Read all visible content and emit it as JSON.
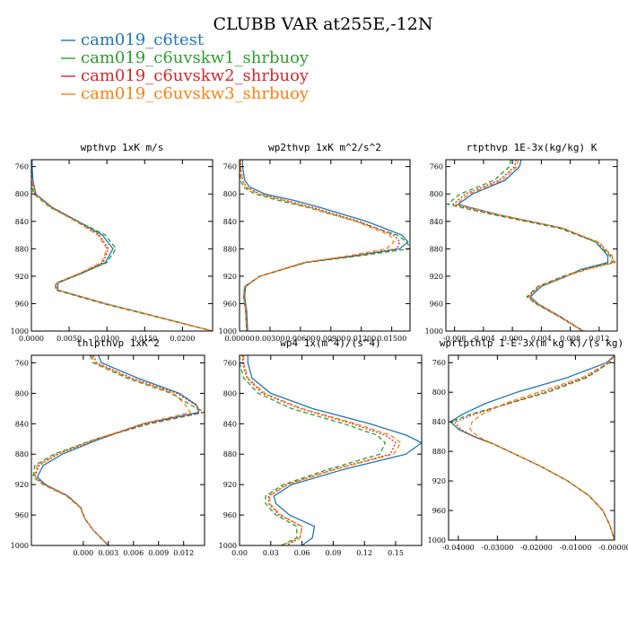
{
  "figure": {
    "title": "CLUBB VAR at255E,-12N"
  },
  "colors": {
    "cam019_c6test": "#1f77b4",
    "cam019_c6uvskw1_shrbuoy": "#2ca02c",
    "cam019_c6uvskw2_shrbuoy": "#d62728",
    "cam019_c6uvskw3_shrbuoy": "#ff7f0e"
  },
  "legend": [
    {
      "name": "cam019_c6test",
      "color": "#1f77b4",
      "dash": "solid"
    },
    {
      "name": "cam019_c6uvskw1_shrbuoy",
      "color": "#2ca02c",
      "dash": "dashed"
    },
    {
      "name": "cam019_c6uvskw2_shrbuoy",
      "color": "#d62728",
      "dash": "dotted"
    },
    {
      "name": "cam019_c6uvskw3_shrbuoy",
      "color": "#ff7f0e",
      "dash": "dashed"
    }
  ],
  "chart_data": [
    {
      "type": "line",
      "title": "wpthvp  1xK m/s",
      "xlim": [
        0,
        0.024
      ],
      "ylim": [
        1000,
        750
      ],
      "xticks": [
        "0.0000",
        "0.0050",
        "0.0100",
        "0.0150",
        "0.0200"
      ],
      "xtick_values": [
        0,
        0.005,
        0.01,
        0.015,
        0.02
      ],
      "yticks": [
        "760",
        "800",
        "840",
        "880",
        "920",
        "960",
        "1000"
      ],
      "ytick_values": [
        760,
        800,
        840,
        880,
        920,
        960,
        1000
      ],
      "y": [
        750,
        760,
        780,
        800,
        820,
        840,
        860,
        880,
        900,
        915,
        930,
        940,
        960,
        980,
        1000
      ],
      "series": [
        {
          "name": "cam019_c6test",
          "values": [
            0.0001,
            0.0001,
            0.0002,
            0.0006,
            0.0028,
            0.0062,
            0.0094,
            0.0108,
            0.0098,
            0.0068,
            0.0035,
            0.0035,
            0.0098,
            0.017,
            0.024
          ]
        },
        {
          "name": "cam019_c6uvskw1_shrbuoy",
          "values": [
            -0.0005,
            -0.0004,
            -0.0001,
            0.0003,
            0.0025,
            0.0062,
            0.0098,
            0.0112,
            0.01,
            0.0068,
            0.0032,
            0.0032,
            0.0095,
            0.0168,
            0.024
          ]
        },
        {
          "name": "cam019_c6uvskw2_shrbuoy",
          "values": [
            -0.0002,
            -0.0002,
            0,
            0.0005,
            0.0027,
            0.006,
            0.009,
            0.0102,
            0.0095,
            0.0066,
            0.0033,
            0.0033,
            0.0096,
            0.0169,
            0.024
          ]
        },
        {
          "name": "cam019_c6uvskw3_shrbuoy",
          "values": [
            -0.0001,
            -0.0001,
            0.0001,
            0.0005,
            0.0026,
            0.0059,
            0.0088,
            0.01,
            0.0093,
            0.0065,
            0.0034,
            0.0034,
            0.0097,
            0.0169,
            0.024
          ]
        }
      ]
    },
    {
      "type": "line",
      "title": "wp2thvp  1xK m^2/s^2",
      "xlim": [
        0,
        0.0168
      ],
      "ylim": [
        1000,
        750
      ],
      "xticks": [
        "0.00000",
        "0.00300",
        "0.00600",
        "0.00900",
        "0.01200",
        "0.01500"
      ],
      "xtick_values": [
        0,
        0.003,
        0.006,
        0.009,
        0.012,
        0.015
      ],
      "yticks": [
        "760",
        "800",
        "840",
        "880",
        "920",
        "960",
        "1000"
      ],
      "ytick_values": [
        760,
        800,
        840,
        880,
        920,
        960,
        1000
      ],
      "y": [
        750,
        760,
        780,
        790,
        800,
        810,
        820,
        840,
        860,
        870,
        880,
        890,
        900,
        920,
        935,
        950,
        970,
        1000
      ],
      "series": [
        {
          "name": "cam019_c6test",
          "values": [
            0.0003,
            0.0003,
            0.0005,
            0.001,
            0.0025,
            0.0055,
            0.008,
            0.0125,
            0.016,
            0.0166,
            0.0158,
            0.0115,
            0.0065,
            0.002,
            0.0006,
            0.0005,
            0.0007,
            0.0008
          ]
        },
        {
          "name": "cam019_c6uvskw1_shrbuoy",
          "values": [
            0,
            0,
            0.0001,
            0.0004,
            0.0015,
            0.004,
            0.0068,
            0.0115,
            0.0155,
            0.0165,
            0.0168,
            0.012,
            0.0066,
            0.002,
            0.0005,
            0.0004,
            0.0006,
            0.0007
          ]
        },
        {
          "name": "cam019_c6uvskw2_shrbuoy",
          "values": [
            0.0001,
            0.0001,
            0.0003,
            0.0007,
            0.002,
            0.0047,
            0.0073,
            0.0118,
            0.0152,
            0.0158,
            0.0155,
            0.0112,
            0.0064,
            0.002,
            0.0005,
            0.0004,
            0.0006,
            0.0007
          ]
        },
        {
          "name": "cam019_c6uvskw3_shrbuoy",
          "values": [
            0.0001,
            0.0001,
            0.0003,
            0.0006,
            0.0019,
            0.0045,
            0.007,
            0.0115,
            0.0148,
            0.0152,
            0.0145,
            0.0108,
            0.0063,
            0.002,
            0.0005,
            0.0004,
            0.0006,
            0.0007
          ]
        }
      ]
    },
    {
      "type": "line",
      "title": "rtpthvp  1E-3x(kg/kg) K",
      "xlim": [
        -0.0092,
        0.0145
      ],
      "ylim": [
        1000,
        750
      ],
      "xticks": [
        "-0.008",
        "-0.004",
        "0.000",
        "0.004",
        "0.008",
        "0.012"
      ],
      "xtick_values": [
        -0.008,
        -0.004,
        0,
        0.004,
        0.008,
        0.012
      ],
      "yticks": [
        "760",
        "800",
        "840",
        "880",
        "920",
        "960",
        "1000"
      ],
      "ytick_values": [
        760,
        800,
        840,
        880,
        920,
        960,
        1000
      ],
      "y": [
        750,
        760,
        780,
        800,
        815,
        830,
        850,
        870,
        890,
        900,
        910,
        920,
        935,
        950,
        960,
        980,
        1000
      ],
      "series": [
        {
          "name": "cam019_c6test",
          "values": [
            0.0012,
            0.001,
            -0.001,
            -0.0055,
            -0.0075,
            -0.002,
            0.007,
            0.0115,
            0.0132,
            0.0132,
            0.0095,
            0.0075,
            0.004,
            0.0025,
            0.0035,
            0.0068,
            0.0098
          ]
        },
        {
          "name": "cam019_c6uvskw1_shrbuoy",
          "values": [
            -0.0002,
            -0.0004,
            -0.0025,
            -0.0072,
            -0.009,
            -0.0028,
            0.0065,
            0.0115,
            0.0135,
            0.0138,
            0.01,
            0.007,
            0.0035,
            0.002,
            0.0032,
            0.0066,
            0.0097
          ]
        },
        {
          "name": "cam019_c6uvskw2_shrbuoy",
          "values": [
            0.0005,
            0.0003,
            -0.0018,
            -0.0065,
            -0.0082,
            -0.0024,
            0.0068,
            0.0118,
            0.0137,
            0.014,
            0.0102,
            0.0072,
            0.0037,
            0.0022,
            0.0033,
            0.0067,
            0.0098
          ]
        },
        {
          "name": "cam019_c6uvskw3_shrbuoy",
          "values": [
            0.0008,
            0.0006,
            -0.0014,
            -0.006,
            -0.0078,
            -0.0022,
            0.0069,
            0.0119,
            0.0138,
            0.0142,
            0.0104,
            0.0073,
            0.0038,
            0.0023,
            0.0034,
            0.0067,
            0.0098
          ]
        }
      ]
    },
    {
      "type": "line",
      "title": "thlpthvp  1xK^2",
      "xlim": [
        -0.0062,
        0.0145
      ],
      "ylim": [
        1000,
        750
      ],
      "xticks": [
        "0.000",
        "0.003",
        "0.006",
        "0.009",
        "0.012"
      ],
      "xtick_values": [
        0,
        0.003,
        0.006,
        0.009,
        0.012
      ],
      "yticks": [
        "760",
        "800",
        "840",
        "880",
        "920",
        "960",
        "1000"
      ],
      "ytick_values": [
        760,
        800,
        840,
        880,
        920,
        960,
        1000
      ],
      "y": [
        750,
        760,
        780,
        800,
        815,
        825,
        840,
        860,
        880,
        895,
        910,
        920,
        935,
        950,
        965,
        980,
        1000
      ],
      "series": [
        {
          "name": "cam019_c6test",
          "values": [
            0.0018,
            0.0022,
            0.0065,
            0.0115,
            0.0135,
            0.0138,
            0.0072,
            0.002,
            -0.0025,
            -0.0048,
            -0.0055,
            -0.0045,
            -0.0018,
            -0.0003,
            0.0002,
            0.0012,
            0.003
          ]
        },
        {
          "name": "cam019_c6uvskw1_shrbuoy",
          "values": [
            0.0008,
            0.0012,
            0.0052,
            0.0105,
            0.0128,
            0.0145,
            0.008,
            0.0015,
            -0.0035,
            -0.0058,
            -0.006,
            -0.0048,
            -0.002,
            -0.0004,
            0.0002,
            0.0012,
            0.003
          ]
        },
        {
          "name": "cam019_c6uvskw2_shrbuoy",
          "values": [
            0.0012,
            0.0016,
            0.0058,
            0.0112,
            0.0134,
            0.0142,
            0.0076,
            0.0017,
            -0.003,
            -0.0053,
            -0.0058,
            -0.0046,
            -0.0019,
            -0.0003,
            0.0002,
            0.0012,
            0.003
          ]
        },
        {
          "name": "cam019_c6uvskw3_shrbuoy",
          "values": [
            0.001,
            0.0014,
            0.0055,
            0.0108,
            0.0122,
            0.0128,
            0.0071,
            0.0016,
            -0.0032,
            -0.0055,
            -0.0059,
            -0.0047,
            -0.0019,
            -0.0003,
            0.0002,
            0.0012,
            0.003
          ]
        }
      ]
    },
    {
      "type": "line",
      "title": "wp4  1x(m^4)/(s^4)",
      "xlim": [
        0,
        0.175
      ],
      "ylim": [
        1000,
        750
      ],
      "xticks": [
        "0.00",
        "0.03",
        "0.06",
        "0.09",
        "0.12",
        "0.15"
      ],
      "xtick_values": [
        0,
        0.03,
        0.06,
        0.09,
        0.12,
        0.15
      ],
      "yticks": [
        "760",
        "800",
        "840",
        "880",
        "920",
        "960",
        "1000"
      ],
      "ytick_values": [
        760,
        800,
        840,
        880,
        920,
        960,
        1000
      ],
      "y": [
        750,
        760,
        780,
        800,
        820,
        840,
        855,
        865,
        880,
        900,
        920,
        935,
        945,
        960,
        975,
        990,
        1000
      ],
      "series": [
        {
          "name": "cam019_c6test",
          "values": [
            0.008,
            0.008,
            0.012,
            0.03,
            0.07,
            0.125,
            0.16,
            0.175,
            0.16,
            0.1,
            0.05,
            0.033,
            0.035,
            0.048,
            0.072,
            0.07,
            0.06
          ]
        },
        {
          "name": "cam019_c6uvskw1_shrbuoy",
          "values": [
            0,
            0,
            0.004,
            0.018,
            0.05,
            0.1,
            0.132,
            0.14,
            0.135,
            0.085,
            0.042,
            0.025,
            0.025,
            0.035,
            0.055,
            0.055,
            0.04
          ]
        },
        {
          "name": "cam019_c6uvskw2_shrbuoy",
          "values": [
            0.003,
            0.003,
            0.007,
            0.022,
            0.058,
            0.108,
            0.14,
            0.15,
            0.145,
            0.09,
            0.045,
            0.028,
            0.028,
            0.038,
            0.06,
            0.058,
            0.045
          ]
        },
        {
          "name": "cam019_c6uvskw3_shrbuoy",
          "values": [
            0.004,
            0.004,
            0.008,
            0.024,
            0.06,
            0.112,
            0.145,
            0.155,
            0.148,
            0.092,
            0.046,
            0.029,
            0.029,
            0.04,
            0.06,
            0.058,
            0.04
          ]
        }
      ]
    },
    {
      "type": "line",
      "title": "wprtpthlp  1-E-3x(m kg K)/(s kg)",
      "xlim": [
        -0.0425,
        0
      ],
      "ylim": [
        1000,
        750
      ],
      "xticks": [
        "-0.04000",
        "-0.03000",
        "-0.02000",
        "-0.01000",
        "-0.00000"
      ],
      "xtick_values": [
        -0.04,
        -0.03,
        -0.02,
        -0.01,
        0
      ],
      "yticks": [
        "760",
        "800",
        "840",
        "880",
        "920",
        "960",
        "1000"
      ],
      "ytick_values": [
        760,
        800,
        840,
        880,
        920,
        960,
        1000
      ],
      "y": [
        750,
        760,
        780,
        800,
        815,
        830,
        840,
        850,
        860,
        870,
        885,
        900,
        920,
        940,
        960,
        980,
        1000
      ],
      "series": [
        {
          "name": "cam019_c6test",
          "values": [
            0,
            -0.002,
            -0.012,
            -0.025,
            -0.033,
            -0.039,
            -0.042,
            -0.04,
            -0.036,
            -0.031,
            -0.025,
            -0.019,
            -0.012,
            -0.0065,
            -0.003,
            -0.0012,
            0
          ]
        },
        {
          "name": "cam019_c6uvskw1_shrbuoy",
          "values": [
            0,
            -0.0012,
            -0.007,
            -0.017,
            -0.027,
            -0.037,
            -0.042,
            -0.04,
            -0.036,
            -0.031,
            -0.025,
            -0.019,
            -0.012,
            -0.0065,
            -0.003,
            -0.0012,
            0
          ]
        },
        {
          "name": "cam019_c6uvskw2_shrbuoy",
          "values": [
            0,
            -0.0013,
            -0.0075,
            -0.018,
            -0.027,
            -0.036,
            -0.041,
            -0.0395,
            -0.036,
            -0.031,
            -0.025,
            -0.019,
            -0.012,
            -0.0065,
            -0.003,
            -0.0012,
            0
          ]
        },
        {
          "name": "cam019_c6uvskw3_shrbuoy",
          "values": [
            0,
            -0.0015,
            -0.0082,
            -0.0195,
            -0.028,
            -0.034,
            -0.0365,
            -0.037,
            -0.035,
            -0.031,
            -0.025,
            -0.019,
            -0.012,
            -0.0065,
            -0.003,
            -0.0012,
            0
          ]
        }
      ]
    }
  ]
}
